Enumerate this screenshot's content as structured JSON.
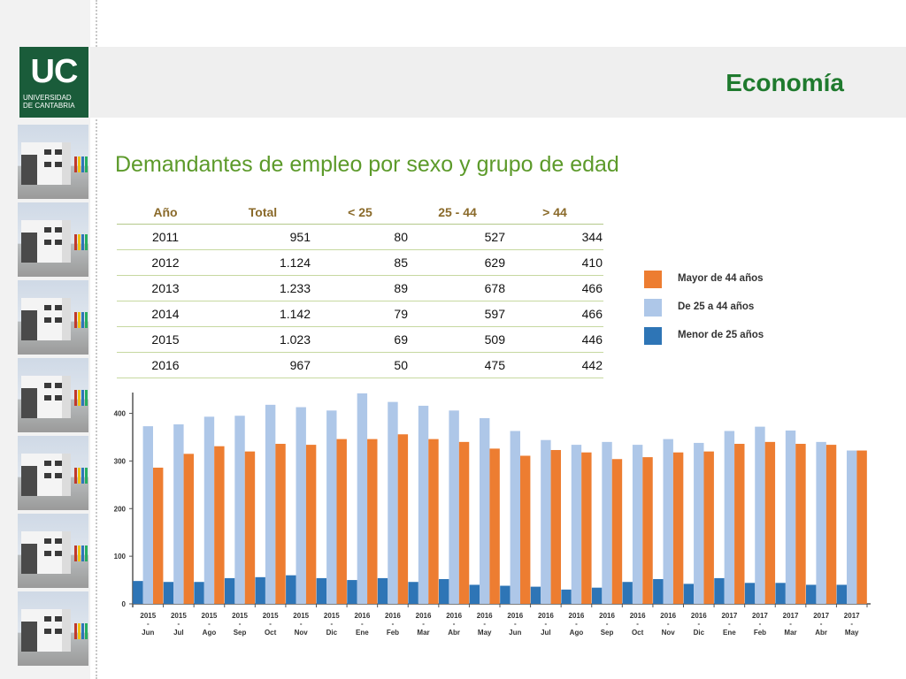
{
  "logo": {
    "mark": "UC",
    "line1": "UNIVERSIDAD",
    "line2": "DE CANTABRIA"
  },
  "header": {
    "title": "Economía"
  },
  "slide": {
    "subtitle": "Demandantes de empleo por sexo y grupo de edad"
  },
  "table": {
    "columns": [
      "Año",
      "Total",
      "< 25",
      "25 - 44",
      "> 44"
    ],
    "rows": [
      [
        "2011",
        "951",
        "80",
        "527",
        "344"
      ],
      [
        "2012",
        "1.124",
        "85",
        "629",
        "410"
      ],
      [
        "2013",
        "1.233",
        "89",
        "678",
        "466"
      ],
      [
        "2014",
        "1.142",
        "79",
        "597",
        "466"
      ],
      [
        "2015",
        "1.023",
        "69",
        "509",
        "446"
      ],
      [
        "2016",
        "967",
        "50",
        "475",
        "442"
      ]
    ]
  },
  "colors": {
    "under25": "#2e75b6",
    "age25_44": "#aec7e8",
    "over44": "#ed7d31",
    "brand": "#1a5c3a",
    "title": "#1f7a2e",
    "subtitle": "#5c9a2a"
  },
  "chart_data": {
    "type": "bar",
    "title": "",
    "xlabel": "",
    "ylabel": "",
    "ylim": [
      0,
      440
    ],
    "yticks": [
      "0",
      "100",
      "200",
      "300",
      "400"
    ],
    "legend_position": "right",
    "categories": [
      {
        "year": "2015",
        "month": "Jun"
      },
      {
        "year": "2015",
        "month": "Jul"
      },
      {
        "year": "2015",
        "month": "Ago"
      },
      {
        "year": "2015",
        "month": "Sep"
      },
      {
        "year": "2015",
        "month": "Oct"
      },
      {
        "year": "2015",
        "month": "Nov"
      },
      {
        "year": "2015",
        "month": "Dic"
      },
      {
        "year": "2016",
        "month": "Ene"
      },
      {
        "year": "2016",
        "month": "Feb"
      },
      {
        "year": "2016",
        "month": "Mar"
      },
      {
        "year": "2016",
        "month": "Abr"
      },
      {
        "year": "2016",
        "month": "May"
      },
      {
        "year": "2016",
        "month": "Jun"
      },
      {
        "year": "2016",
        "month": "Jul"
      },
      {
        "year": "2016",
        "month": "Ago"
      },
      {
        "year": "2016",
        "month": "Sep"
      },
      {
        "year": "2016",
        "month": "Oct"
      },
      {
        "year": "2016",
        "month": "Nov"
      },
      {
        "year": "2016",
        "month": "Dic"
      },
      {
        "year": "2017",
        "month": "Ene"
      },
      {
        "year": "2017",
        "month": "Feb"
      },
      {
        "year": "2017",
        "month": "Mar"
      },
      {
        "year": "2017",
        "month": "Abr"
      },
      {
        "year": "2017",
        "month": "May"
      }
    ],
    "series": [
      {
        "name": "Menor de 25 años",
        "values": [
          48,
          46,
          46,
          54,
          56,
          60,
          54,
          50,
          54,
          46,
          52,
          40,
          38,
          36,
          30,
          34,
          46,
          52,
          42,
          54,
          44,
          44,
          40,
          40
        ]
      },
      {
        "name": "De 25 a 44 años",
        "values": [
          373,
          377,
          393,
          395,
          418,
          413,
          406,
          442,
          424,
          416,
          406,
          390,
          363,
          344,
          334,
          340,
          334,
          346,
          338,
          363,
          372,
          364,
          340,
          322
        ]
      },
      {
        "name": "Mayor de 44 años",
        "values": [
          286,
          315,
          331,
          320,
          336,
          334,
          346,
          346,
          356,
          346,
          340,
          326,
          311,
          323,
          318,
          304,
          308,
          318,
          320,
          336,
          340,
          336,
          334,
          322
        ]
      }
    ]
  }
}
